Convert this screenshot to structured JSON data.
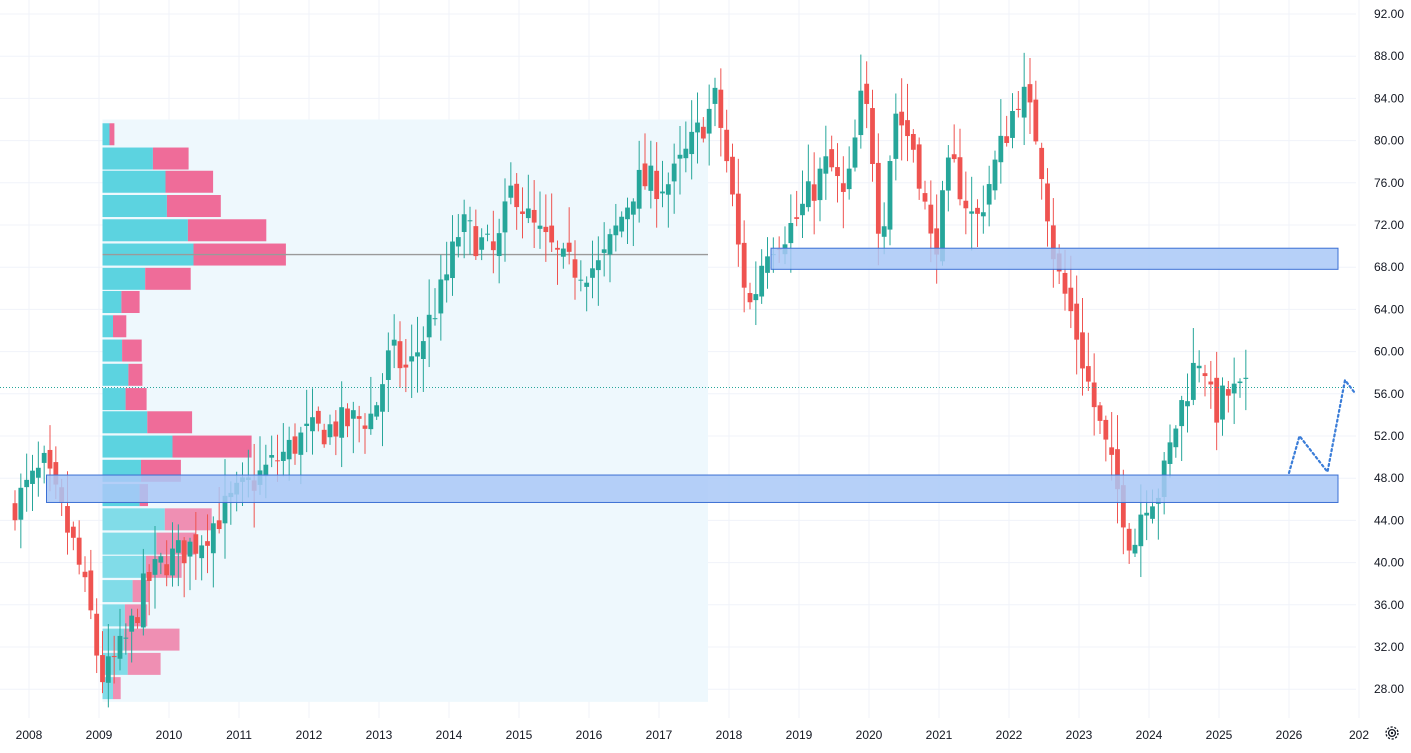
{
  "chart_data": {
    "type": "candlestick",
    "colors": {
      "up": "#26a69a",
      "down": "#ef5350",
      "zone_fill": "#a9c8f7",
      "zone_stroke": "#3b6fd4",
      "vp_up": "#5cd3e0",
      "vp_down": "#ef6c99",
      "vp_area": "#eef8fd",
      "poc": "#9a9a9a",
      "last_price_line": "#26a69a",
      "projection": "#3b7dd8",
      "grid": "#f0f3fa",
      "axis_text": "#131722"
    },
    "x_axis": {
      "labels": [
        "2008",
        "2009",
        "2010",
        "2011",
        "2012",
        "2013",
        "2014",
        "2015",
        "2016",
        "2017",
        "2018",
        "2019",
        "2020",
        "2021",
        "2022",
        "2023",
        "2024",
        "2025",
        "2026",
        "202"
      ],
      "range": [
        2008.0,
        2027.0
      ]
    },
    "y_axis": {
      "labels": [
        "92.00",
        "88.00",
        "84.00",
        "80.00",
        "76.00",
        "72.00",
        "68.00",
        "64.00",
        "60.00",
        "56.00",
        "52.00",
        "48.00",
        "44.00",
        "40.00",
        "36.00",
        "32.00",
        "28.00"
      ],
      "range": [
        26.5,
        93.0
      ],
      "grid": true
    },
    "key_points": [
      {
        "t": 2007.8,
        "v": 45
      },
      {
        "t": 2008.3,
        "v": 49
      },
      {
        "t": 2008.75,
        "v": 41
      },
      {
        "t": 2009.0,
        "v": 34
      },
      {
        "t": 2009.1,
        "v": 29
      },
      {
        "t": 2009.25,
        "v": 30
      },
      {
        "t": 2009.5,
        "v": 33
      },
      {
        "t": 2009.75,
        "v": 38
      },
      {
        "t": 2010.0,
        "v": 40
      },
      {
        "t": 2010.5,
        "v": 42
      },
      {
        "t": 2011.0,
        "v": 46
      },
      {
        "t": 2011.5,
        "v": 49
      },
      {
        "t": 2012.0,
        "v": 52
      },
      {
        "t": 2012.5,
        "v": 53
      },
      {
        "t": 2013.0,
        "v": 54
      },
      {
        "t": 2013.25,
        "v": 60
      },
      {
        "t": 2013.5,
        "v": 58
      },
      {
        "t": 2013.75,
        "v": 62
      },
      {
        "t": 2014.0,
        "v": 66
      },
      {
        "t": 2014.25,
        "v": 72
      },
      {
        "t": 2014.75,
        "v": 69
      },
      {
        "t": 2015.0,
        "v": 76
      },
      {
        "t": 2015.25,
        "v": 72
      },
      {
        "t": 2015.75,
        "v": 68
      },
      {
        "t": 2016.25,
        "v": 68
      },
      {
        "t": 2016.5,
        "v": 72
      },
      {
        "t": 2016.75,
        "v": 76
      },
      {
        "t": 2017.25,
        "v": 76
      },
      {
        "t": 2017.5,
        "v": 79
      },
      {
        "t": 2017.9,
        "v": 84
      },
      {
        "t": 2018.1,
        "v": 76
      },
      {
        "t": 2018.25,
        "v": 68
      },
      {
        "t": 2018.4,
        "v": 64
      },
      {
        "t": 2018.6,
        "v": 70
      },
      {
        "t": 2019.0,
        "v": 72
      },
      {
        "t": 2019.5,
        "v": 78
      },
      {
        "t": 2019.75,
        "v": 74
      },
      {
        "t": 2020.0,
        "v": 85
      },
      {
        "t": 2020.15,
        "v": 78
      },
      {
        "t": 2020.25,
        "v": 70
      },
      {
        "t": 2020.45,
        "v": 83
      },
      {
        "t": 2020.75,
        "v": 79
      },
      {
        "t": 2021.0,
        "v": 69
      },
      {
        "t": 2021.25,
        "v": 78
      },
      {
        "t": 2021.6,
        "v": 72
      },
      {
        "t": 2022.0,
        "v": 80
      },
      {
        "t": 2022.25,
        "v": 85
      },
      {
        "t": 2022.5,
        "v": 80
      },
      {
        "t": 2022.75,
        "v": 68
      },
      {
        "t": 2023.0,
        "v": 63
      },
      {
        "t": 2023.25,
        "v": 56
      },
      {
        "t": 2023.5,
        "v": 50
      },
      {
        "t": 2023.75,
        "v": 44
      },
      {
        "t": 2023.85,
        "v": 41
      },
      {
        "t": 2024.0,
        "v": 46
      },
      {
        "t": 2024.25,
        "v": 47
      },
      {
        "t": 2024.5,
        "v": 54
      },
      {
        "t": 2024.75,
        "v": 59
      },
      {
        "t": 2024.85,
        "v": 60
      },
      {
        "t": 2025.0,
        "v": 54
      },
      {
        "t": 2025.2,
        "v": 56
      },
      {
        "t": 2025.4,
        "v": 56
      }
    ],
    "zones": [
      {
        "t1": 2008.25,
        "t2": 2026.7,
        "low": 45.7,
        "high": 48.3
      },
      {
        "t1": 2018.6,
        "t2": 2026.7,
        "low": 67.8,
        "high": 69.8
      }
    ],
    "last_price": 56.6,
    "volume_profile": {
      "t_start": 2009.05,
      "t_end": 2017.7,
      "poc_price": 69.2,
      "bins": [
        {
          "price": 80.6,
          "up": 0.1,
          "down": 0.07
        },
        {
          "price": 78.3,
          "up": 0.72,
          "down": 0.51
        },
        {
          "price": 76.1,
          "up": 0.9,
          "down": 0.68
        },
        {
          "price": 73.8,
          "up": 0.92,
          "down": 0.77
        },
        {
          "price": 71.5,
          "up": 1.22,
          "down": 1.12
        },
        {
          "price": 69.2,
          "up": 1.3,
          "down": 1.32
        },
        {
          "price": 66.9,
          "up": 0.61,
          "down": 0.65
        },
        {
          "price": 64.7,
          "up": 0.27,
          "down": 0.26
        },
        {
          "price": 62.4,
          "up": 0.15,
          "down": 0.19
        },
        {
          "price": 60.1,
          "up": 0.28,
          "down": 0.28
        },
        {
          "price": 57.8,
          "up": 0.37,
          "down": 0.2
        },
        {
          "price": 55.5,
          "up": 0.33,
          "down": 0.3
        },
        {
          "price": 53.3,
          "up": 0.64,
          "down": 0.64
        },
        {
          "price": 51.0,
          "up": 1.0,
          "down": 1.13
        },
        {
          "price": 48.7,
          "up": 0.55,
          "down": 0.57
        },
        {
          "price": 46.4,
          "up": 0.53,
          "down": 0.12
        },
        {
          "price": 44.1,
          "up": 0.89,
          "down": 0.67
        },
        {
          "price": 41.8,
          "up": 0.77,
          "down": 0.56
        },
        {
          "price": 39.6,
          "up": 0.62,
          "down": 0.51
        },
        {
          "price": 37.3,
          "up": 0.43,
          "down": 0.23
        },
        {
          "price": 35.0,
          "up": 0.32,
          "down": 0.32
        },
        {
          "price": 32.7,
          "up": 0.31,
          "down": 0.79
        },
        {
          "price": 30.4,
          "up": 0.36,
          "down": 0.47
        },
        {
          "price": 28.1,
          "up": 0.15,
          "down": 0.11
        }
      ]
    },
    "projection": [
      {
        "t": 2026.0,
        "v": 48.5
      },
      {
        "t": 2026.15,
        "v": 52.0
      },
      {
        "t": 2026.55,
        "v": 48.6
      },
      {
        "t": 2026.8,
        "v": 57.3
      },
      {
        "t": 2026.95,
        "v": 56.0
      }
    ]
  },
  "settings_icon": "gear-icon"
}
